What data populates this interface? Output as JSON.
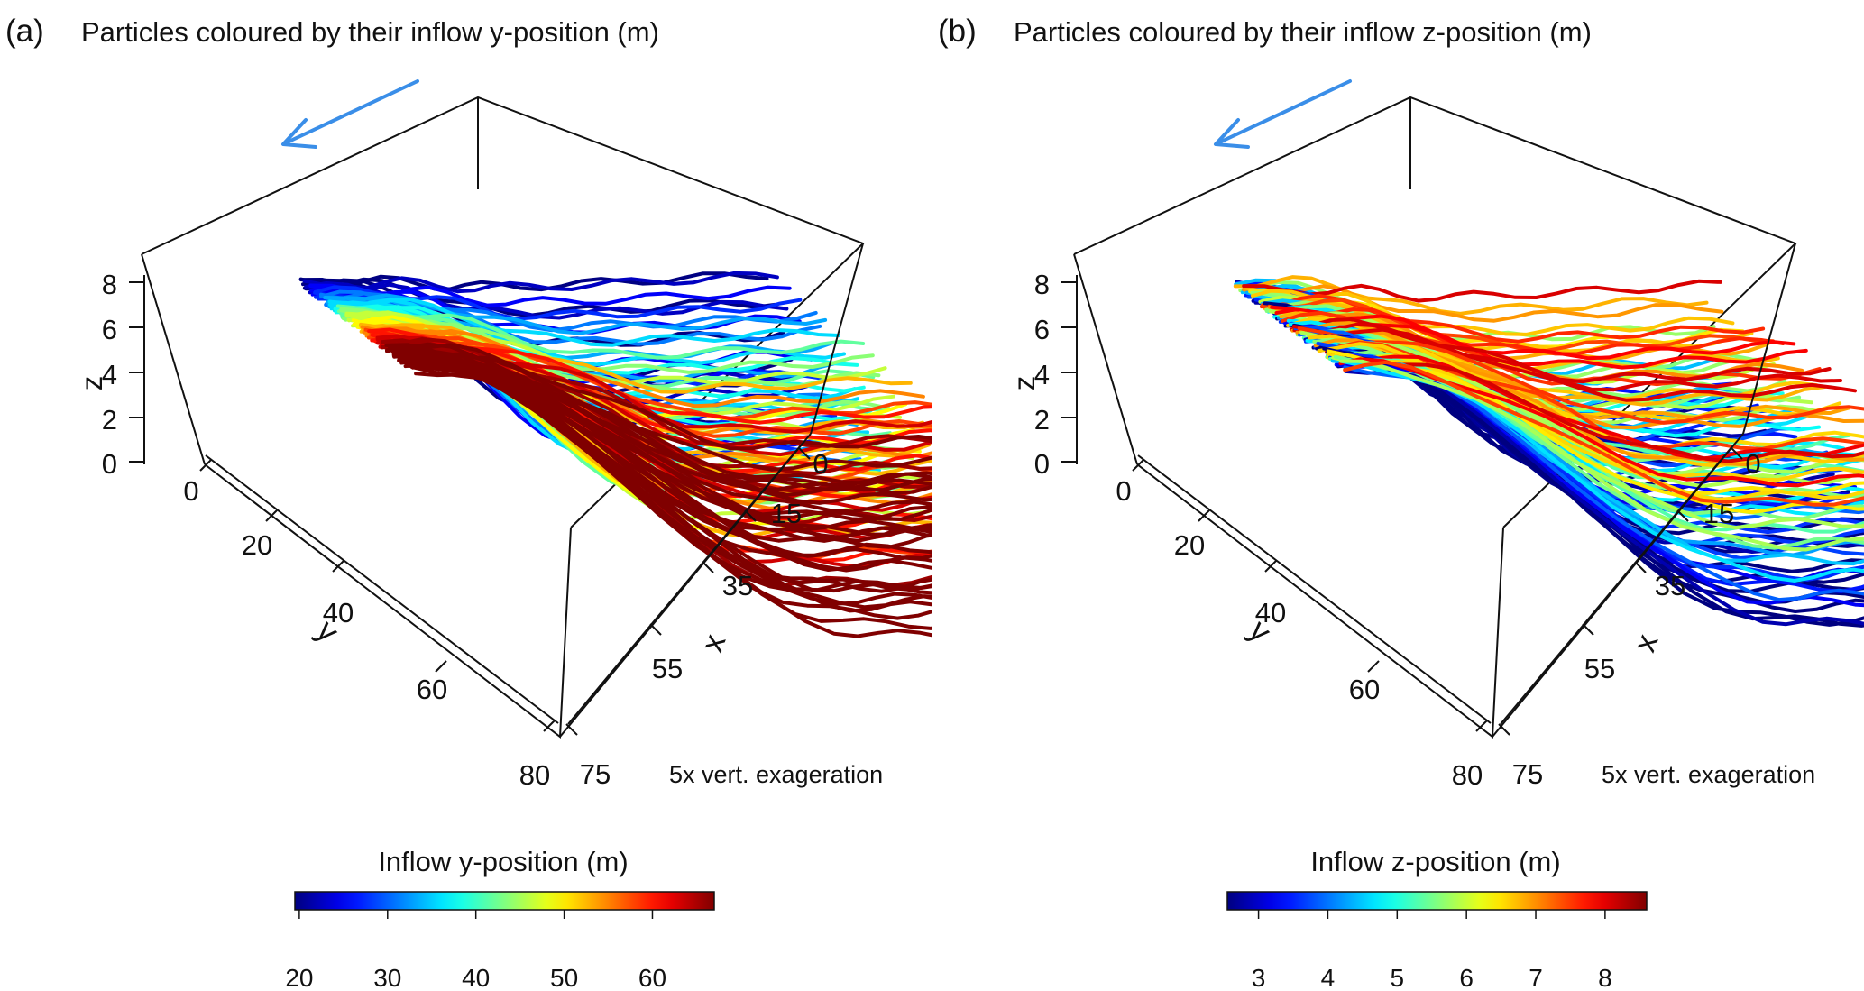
{
  "chart_data": [
    {
      "type": "3d-line",
      "panel_label": "(a)",
      "title": "Particles coloured by their inflow y-position (m)",
      "axes": {
        "x": {
          "label": "x",
          "ticks": [
            "0",
            "15",
            "35",
            "55",
            "75"
          ],
          "range": [
            0,
            75
          ]
        },
        "y": {
          "label": "y",
          "ticks": [
            "0",
            "20",
            "40",
            "60",
            "80"
          ],
          "range": [
            0,
            80
          ]
        },
        "z": {
          "label": "z",
          "ticks": [
            "0",
            "2",
            "4",
            "6",
            "8"
          ],
          "range": [
            0,
            8
          ]
        }
      },
      "note": "5x vert. exageration",
      "flow_arrow_color": "#3a8ee8",
      "colorbar": {
        "title": "Inflow y-position (m)",
        "ticks": [
          "20",
          "30",
          "40",
          "50",
          "60"
        ],
        "tick_values": [
          20,
          30,
          40,
          50,
          60
        ],
        "range": [
          19.5,
          67
        ],
        "colormap": "jet"
      },
      "color_variable": "y"
    },
    {
      "type": "3d-line",
      "panel_label": "(b)",
      "title": "Particles coloured by their inflow z-position (m)",
      "axes": {
        "x": {
          "label": "x",
          "ticks": [
            "0",
            "15",
            "35",
            "55",
            "75"
          ],
          "range": [
            0,
            75
          ]
        },
        "y": {
          "label": "y",
          "ticks": [
            "0",
            "20",
            "40",
            "60",
            "80"
          ],
          "range": [
            0,
            80
          ]
        },
        "z": {
          "label": "z",
          "ticks": [
            "0",
            "2",
            "4",
            "6",
            "8"
          ],
          "range": [
            0,
            8
          ]
        }
      },
      "note": "5x vert. exageration",
      "flow_arrow_color": "#3a8ee8",
      "colorbar": {
        "title": "Inflow z-position (m)",
        "ticks": [
          "3",
          "4",
          "5",
          "6",
          "7",
          "8"
        ],
        "tick_values": [
          3,
          4,
          5,
          6,
          7,
          8
        ],
        "range": [
          2.55,
          8.6
        ],
        "colormap": "jet"
      },
      "color_variable": "z"
    }
  ]
}
